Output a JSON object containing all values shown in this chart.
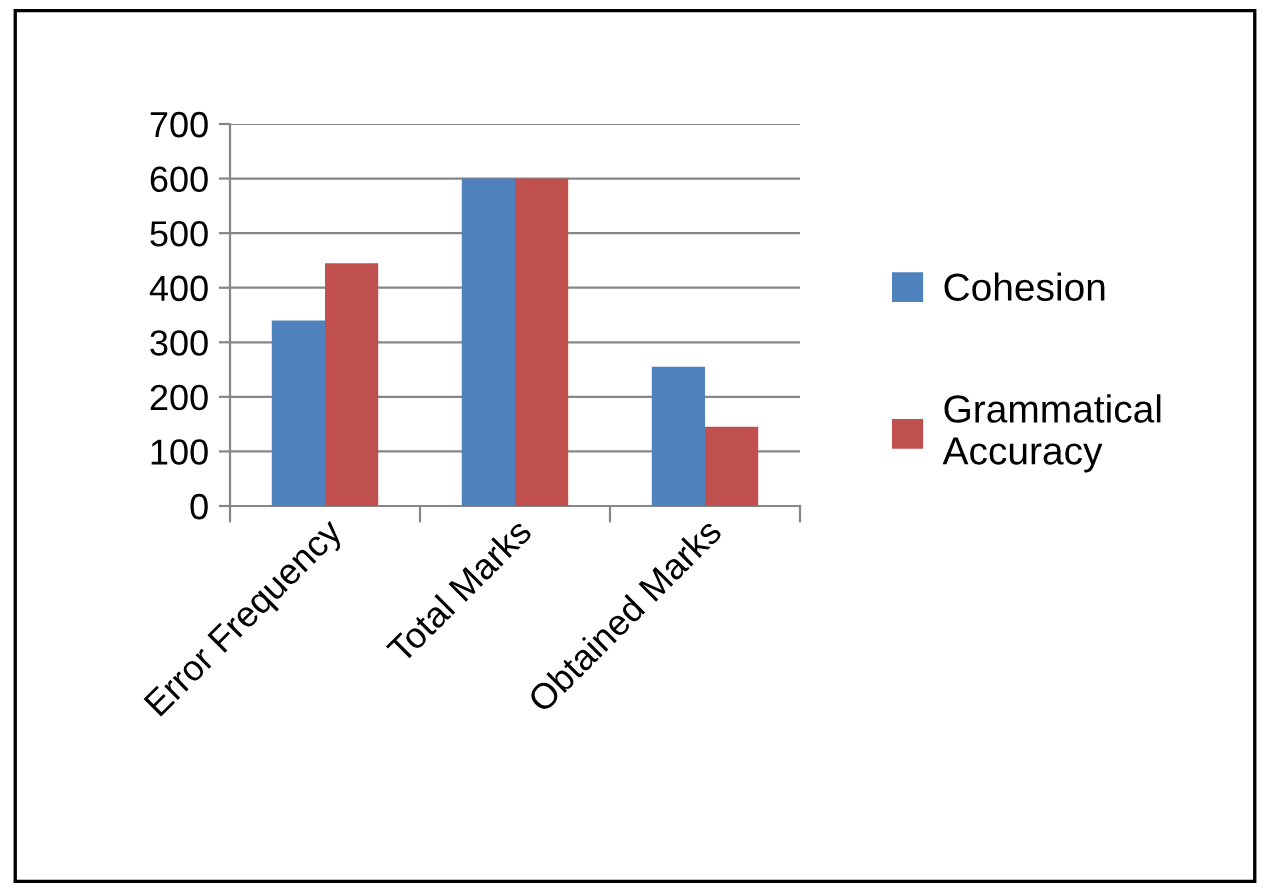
{
  "chart_data": {
    "type": "bar",
    "categories": [
      "Error Frequency",
      "Total Marks",
      "Obtained Marks"
    ],
    "series": [
      {
        "name": "Cohesion",
        "color": "#4f81bd",
        "values": [
          340,
          600,
          255
        ]
      },
      {
        "name": "Grammatical Accuracy",
        "color": "#c0504d",
        "values": [
          445,
          600,
          145
        ]
      }
    ],
    "ylim": [
      0,
      700
    ],
    "yticks": [
      0,
      100,
      200,
      300,
      400,
      500,
      600,
      700
    ],
    "grid": "y",
    "legend": "right"
  }
}
